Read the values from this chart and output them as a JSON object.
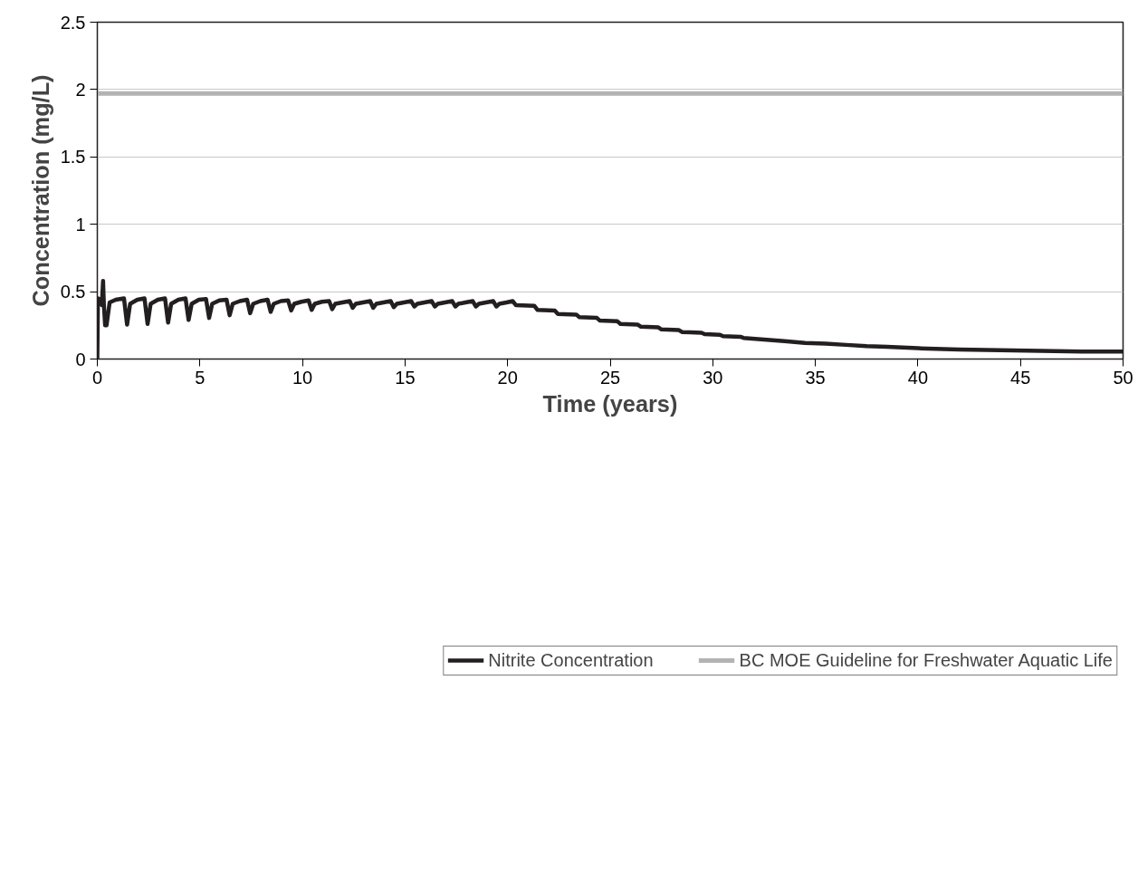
{
  "chart_data": {
    "type": "line",
    "xlabel": "Time (years)",
    "ylabel": "Concentration (mg/L)",
    "xlim": [
      0,
      50
    ],
    "xticks": [
      0,
      5,
      10,
      15,
      20,
      25,
      30,
      35,
      40,
      45,
      50
    ],
    "ylim": [
      0,
      2.5
    ],
    "yticks": [
      0,
      0.5,
      1,
      1.5,
      2,
      2.5
    ],
    "grid": "y",
    "legend": "bottom",
    "marker": "none",
    "line_style": "solid",
    "series": [
      {
        "name": "Nitrite Concentration",
        "color": "#231f20",
        "x": [
          0,
          0.03,
          0.15,
          0.22,
          0.28,
          0.32,
          0.38,
          0.45,
          0.6,
          0.9,
          1.3,
          1.45,
          1.6,
          1.95,
          2.3,
          2.45,
          2.6,
          2.95,
          3.3,
          3.45,
          3.6,
          3.95,
          4.3,
          4.45,
          4.6,
          4.95,
          5.3,
          5.45,
          5.6,
          5.95,
          6.3,
          6.45,
          6.6,
          6.95,
          7.3,
          7.45,
          7.6,
          7.95,
          8.3,
          8.45,
          8.6,
          8.95,
          9.3,
          9.45,
          9.6,
          9.95,
          10.3,
          10.45,
          10.6,
          10.95,
          11.3,
          11.45,
          11.6,
          11.95,
          12.3,
          12.45,
          12.6,
          12.95,
          13.3,
          13.45,
          13.6,
          13.95,
          14.3,
          14.45,
          14.6,
          14.95,
          15.3,
          15.45,
          15.6,
          15.95,
          16.3,
          16.45,
          16.6,
          16.95,
          17.3,
          17.45,
          17.6,
          17.95,
          18.3,
          18.45,
          18.6,
          18.95,
          19.3,
          19.45,
          19.6,
          19.95,
          20.25,
          20.4,
          21.3,
          21.45,
          22.3,
          22.45,
          23.35,
          23.5,
          24.35,
          24.5,
          25.35,
          25.5,
          26.35,
          26.5,
          27.35,
          27.5,
          28.35,
          28.5,
          29.45,
          29.6,
          30.35,
          30.5,
          31.35,
          31.5,
          32.5,
          33.5,
          34.5,
          35.5,
          36.5,
          37.5,
          38.5,
          40,
          42,
          44,
          46,
          48,
          50
        ],
        "values": [
          0,
          0.45,
          0.44,
          0.4,
          0.58,
          0.4,
          0.25,
          0.25,
          0.42,
          0.44,
          0.45,
          0.255,
          0.41,
          0.44,
          0.45,
          0.26,
          0.41,
          0.44,
          0.45,
          0.27,
          0.41,
          0.44,
          0.45,
          0.29,
          0.41,
          0.44,
          0.445,
          0.305,
          0.41,
          0.435,
          0.44,
          0.325,
          0.41,
          0.43,
          0.44,
          0.34,
          0.41,
          0.43,
          0.44,
          0.35,
          0.41,
          0.43,
          0.435,
          0.36,
          0.41,
          0.425,
          0.435,
          0.365,
          0.41,
          0.425,
          0.43,
          0.37,
          0.41,
          0.42,
          0.43,
          0.38,
          0.41,
          0.42,
          0.43,
          0.38,
          0.41,
          0.42,
          0.43,
          0.385,
          0.41,
          0.42,
          0.43,
          0.39,
          0.41,
          0.42,
          0.43,
          0.39,
          0.41,
          0.42,
          0.43,
          0.39,
          0.41,
          0.42,
          0.43,
          0.39,
          0.41,
          0.42,
          0.43,
          0.39,
          0.41,
          0.42,
          0.43,
          0.4,
          0.395,
          0.365,
          0.36,
          0.335,
          0.33,
          0.31,
          0.305,
          0.285,
          0.28,
          0.26,
          0.255,
          0.24,
          0.235,
          0.22,
          0.215,
          0.2,
          0.195,
          0.185,
          0.18,
          0.17,
          0.165,
          0.157,
          0.145,
          0.133,
          0.12,
          0.115,
          0.105,
          0.095,
          0.09,
          0.08,
          0.07,
          0.065,
          0.06,
          0.055,
          0.055
        ]
      },
      {
        "name": "BC MOE Guideline for Freshwater Aquatic Life",
        "color": "#b3b3b3",
        "x": [
          0,
          50
        ],
        "values": [
          1.97,
          1.97
        ]
      }
    ]
  }
}
